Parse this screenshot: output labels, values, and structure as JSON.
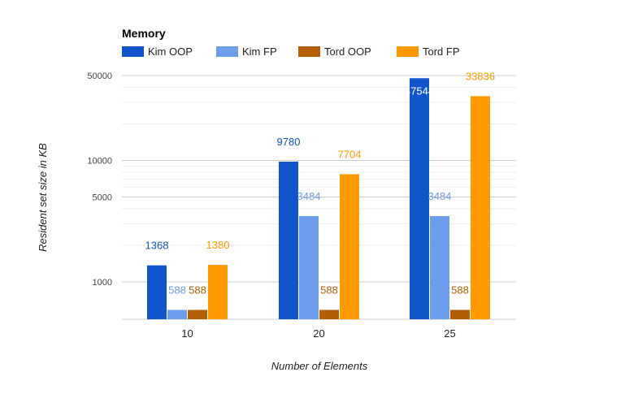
{
  "chart_data": {
    "type": "bar",
    "title": "Memory",
    "xlabel": "Number of Elements",
    "ylabel": "Resident set size in KB",
    "yscale": "log",
    "grid": true,
    "legend_position": "top",
    "categories": [
      "10",
      "20",
      "25"
    ],
    "yticks": [
      1000,
      5000,
      10000,
      50000
    ],
    "ytick_labels": [
      "1000",
      "5000",
      "10000",
      "50000"
    ],
    "series": [
      {
        "name": "Kim OOP",
        "color": "#1155CC",
        "values": [
          1368,
          9780,
          47544
        ]
      },
      {
        "name": "Kim FP",
        "color": "#6D9EEB",
        "values": [
          588,
          3484,
          3484
        ]
      },
      {
        "name": "Tord OOP",
        "color": "#B45F06",
        "values": [
          588,
          588,
          588
        ]
      },
      {
        "name": "Tord FP",
        "color": "#FF9900",
        "values": [
          1380,
          7704,
          33836
        ]
      }
    ]
  }
}
